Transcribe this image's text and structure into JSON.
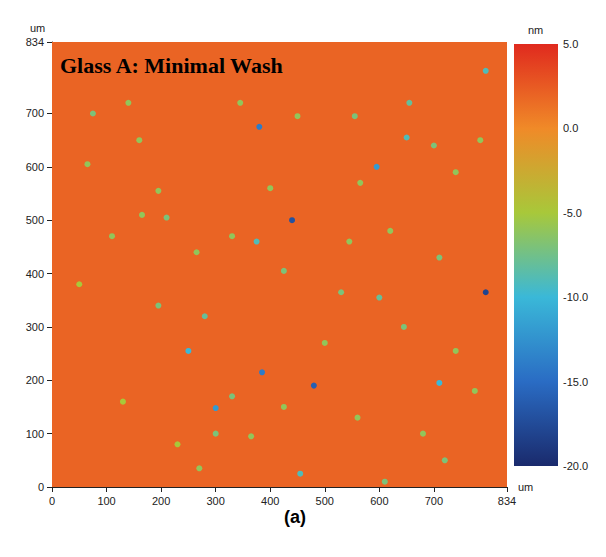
{
  "chart_data": {
    "type": "heatmap",
    "title": "Glass A: Minimal Wash",
    "xlabel": "um",
    "ylabel": "um",
    "colorbar_label": "nm",
    "caption": "(a)",
    "xlim": [
      0,
      834
    ],
    "xticks": [
      0,
      100,
      200,
      300,
      400,
      500,
      600,
      700,
      834
    ],
    "ylim": [
      0,
      834
    ],
    "yticks": [
      0,
      100,
      200,
      300,
      400,
      500,
      600,
      700,
      834
    ],
    "grid": false,
    "background": 2.0,
    "pits": {
      "x": [
        380,
        440,
        795,
        480,
        300,
        385,
        710,
        595,
        650,
        655,
        250,
        425,
        265,
        375,
        280,
        195,
        210,
        110,
        195,
        330,
        530,
        545,
        600,
        620,
        710,
        740,
        795,
        610,
        455,
        740,
        700,
        160,
        65,
        75,
        140,
        345,
        450,
        555,
        270,
        300,
        165,
        645,
        565,
        425,
        330,
        785,
        365,
        680,
        500,
        130,
        720,
        560,
        50,
        400,
        230,
        775
      ],
      "y": [
        675,
        500,
        365,
        190,
        148,
        215,
        195,
        600,
        655,
        720,
        255,
        405,
        440,
        460,
        320,
        555,
        505,
        470,
        340,
        470,
        365,
        460,
        355,
        480,
        430,
        255,
        780,
        10,
        25,
        590,
        640,
        650,
        605,
        700,
        720,
        720,
        695,
        695,
        35,
        100,
        510,
        300,
        570,
        150,
        170,
        650,
        95,
        100,
        270,
        160,
        50,
        130,
        380,
        560,
        80,
        180
      ],
      "z": [
        -14,
        -17,
        -18,
        -16,
        -12,
        -14,
        -10,
        -12,
        -9,
        -8,
        -10,
        -7,
        -6,
        -9,
        -8,
        -6,
        -7,
        -6,
        -7,
        -6,
        -7,
        -6,
        -8,
        -6,
        -7,
        -6,
        -9,
        -7,
        -9,
        -6,
        -7,
        -6,
        -6,
        -7,
        -6,
        -6,
        -6,
        -7,
        -6,
        -7,
        -6,
        -7,
        -6,
        -6,
        -7,
        -6,
        -6,
        -6,
        -6,
        -5,
        -7,
        -6,
        -5,
        -6,
        -5,
        -6
      ]
    },
    "colorbar": {
      "range": [
        -20,
        5
      ],
      "ticks": [
        {
          "value": 5,
          "label": "5.0"
        },
        {
          "value": 0,
          "label": "0.0"
        },
        {
          "value": -5,
          "label": "-5.0"
        },
        {
          "value": -10,
          "label": "-10.0"
        },
        {
          "value": -15,
          "label": "-15.0"
        },
        {
          "value": -20,
          "label": "-20.0"
        }
      ],
      "colors": [
        "#1a2a6c",
        "#2a6cc4",
        "#3ab8d8",
        "#a8c83a",
        "#f08a28",
        "#e02a1e"
      ]
    }
  }
}
